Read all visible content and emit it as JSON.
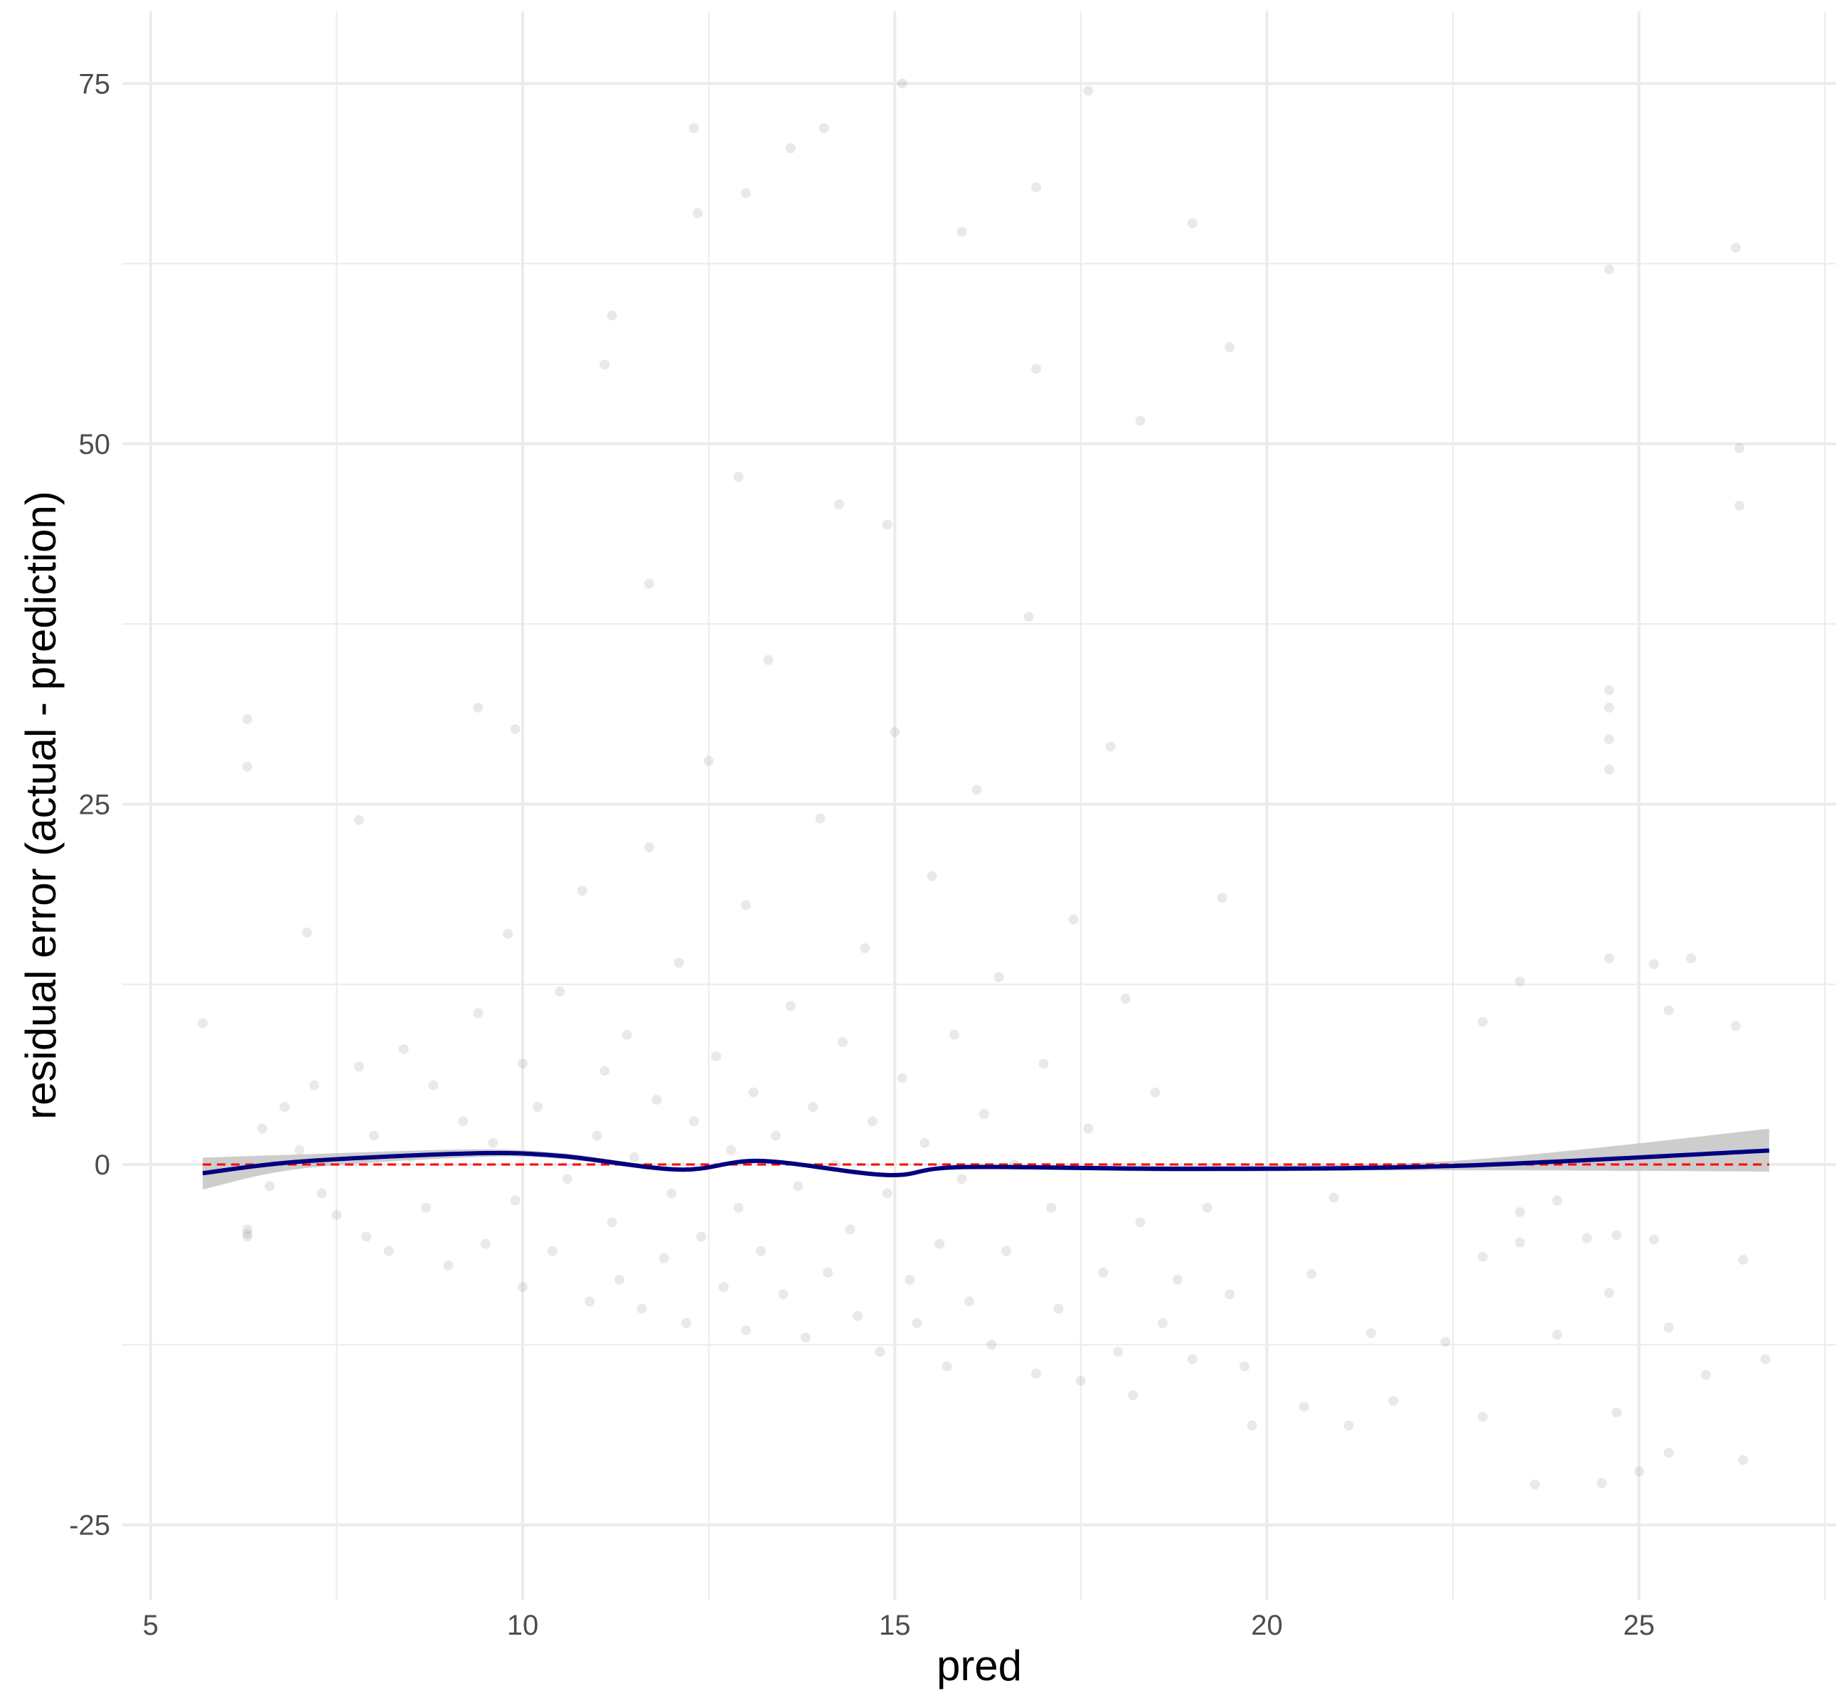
{
  "chart_data": {
    "type": "scatter",
    "title": "",
    "xlabel": "pred",
    "ylabel": "residual error (actual - prediction)",
    "xlim": [
      4.62,
      27.65
    ],
    "ylim": [
      -30.2,
      80
    ],
    "x_ticks": [
      "5",
      "10",
      "15",
      "20",
      "25"
    ],
    "y_ticks": [
      "-25",
      "0",
      "25",
      "50",
      "75"
    ],
    "grid": true,
    "legend": "none",
    "colors": {
      "points": "#999999",
      "smooth": "#000080",
      "band": "#c8c8c8",
      "reference": "#ff0000",
      "grid": "#ebebeb"
    },
    "points": [
      [
        26.3,
        63.6
      ],
      [
        24.6,
        62.1
      ],
      [
        26.35,
        49.7
      ],
      [
        26.35,
        45.7
      ],
      [
        24.6,
        32.9
      ],
      [
        24.6,
        31.7
      ],
      [
        24.6,
        29.5
      ],
      [
        24.6,
        27.4
      ],
      [
        26.3,
        9.6
      ],
      [
        22.9,
        9.9
      ],
      [
        25.4,
        10.7
      ],
      [
        25.2,
        13.9
      ],
      [
        24.6,
        14.3
      ],
      [
        23.4,
        12.7
      ],
      [
        25.7,
        14.3
      ],
      [
        12.3,
        71.9
      ],
      [
        13.6,
        70.5
      ],
      [
        14.05,
        71.9
      ],
      [
        15.1,
        75
      ],
      [
        17.6,
        74.5
      ],
      [
        19.0,
        65.3
      ],
      [
        12.35,
        66.0
      ],
      [
        13.0,
        67.4
      ],
      [
        16.9,
        67.8
      ],
      [
        15.9,
        64.7
      ],
      [
        11.2,
        58.9
      ],
      [
        11.1,
        55.5
      ],
      [
        12.9,
        47.7
      ],
      [
        19.5,
        56.7
      ],
      [
        18.3,
        51.6
      ],
      [
        16.9,
        55.2
      ],
      [
        14.25,
        45.8
      ],
      [
        14.9,
        44.4
      ],
      [
        11.7,
        40.3
      ],
      [
        9.4,
        31.7
      ],
      [
        6.3,
        30.9
      ],
      [
        6.3,
        27.6
      ],
      [
        9.9,
        30.2
      ],
      [
        7.8,
        23.9
      ],
      [
        7.1,
        16.1
      ],
      [
        5.7,
        9.8
      ],
      [
        20.9,
        -2.3
      ],
      [
        20.6,
        -7.6
      ],
      [
        21.4,
        -11.7
      ],
      [
        20.5,
        -16.8
      ],
      [
        19.8,
        -18.1
      ],
      [
        21.1,
        -18.1
      ],
      [
        21.7,
        -16.4
      ],
      [
        22.4,
        -12.3
      ],
      [
        22.9,
        -17.5
      ],
      [
        23.6,
        -22.2
      ],
      [
        24.5,
        -22.1
      ],
      [
        25.0,
        -21.3
      ],
      [
        26.4,
        -20.5
      ],
      [
        26.7,
        -13.5
      ],
      [
        25.9,
        -14.6
      ],
      [
        24.7,
        -17.2
      ],
      [
        25.4,
        -11.3
      ],
      [
        23.9,
        -11.8
      ],
      [
        24.3,
        -5.1
      ],
      [
        23.4,
        -3.3
      ],
      [
        23.4,
        -5.4
      ],
      [
        22.9,
        -6.4
      ],
      [
        23.9,
        -2.5
      ],
      [
        24.7,
        -4.9
      ],
      [
        25.2,
        -5.2
      ],
      [
        26.4,
        -6.6
      ],
      [
        25.4,
        -20.0
      ],
      [
        24.6,
        -8.9
      ],
      [
        6.3,
        -4.5
      ],
      [
        6.3,
        -5.0
      ],
      [
        6.3,
        -4.8
      ],
      [
        6.5,
        2.5
      ],
      [
        6.6,
        -1.5
      ],
      [
        6.8,
        4.0
      ],
      [
        7.0,
        1.0
      ],
      [
        7.2,
        5.5
      ],
      [
        7.3,
        -2.0
      ],
      [
        7.5,
        -3.5
      ],
      [
        7.8,
        6.8
      ],
      [
        7.9,
        -5.0
      ],
      [
        8.0,
        2.0
      ],
      [
        8.2,
        -6.0
      ],
      [
        8.4,
        8.0
      ],
      [
        8.5,
        0.5
      ],
      [
        8.7,
        -3.0
      ],
      [
        8.8,
        5.5
      ],
      [
        9.0,
        -7.0
      ],
      [
        9.2,
        3.0
      ],
      [
        9.4,
        10.5
      ],
      [
        9.5,
        -5.5
      ],
      [
        9.6,
        1.5
      ],
      [
        9.8,
        16.0
      ],
      [
        9.9,
        -2.5
      ],
      [
        10.0,
        7.0
      ],
      [
        10.0,
        -8.5
      ],
      [
        10.2,
        4.0
      ],
      [
        10.4,
        -6.0
      ],
      [
        10.5,
        12.0
      ],
      [
        10.6,
        -1.0
      ],
      [
        10.8,
        19.0
      ],
      [
        10.9,
        -9.5
      ],
      [
        11.0,
        2.0
      ],
      [
        11.1,
        6.5
      ],
      [
        11.2,
        -4.0
      ],
      [
        11.3,
        -8.0
      ],
      [
        11.4,
        9.0
      ],
      [
        11.5,
        0.5
      ],
      [
        11.6,
        -10.0
      ],
      [
        11.7,
        22.0
      ],
      [
        11.8,
        4.5
      ],
      [
        11.9,
        -6.5
      ],
      [
        12.0,
        -2.0
      ],
      [
        12.1,
        14.0
      ],
      [
        12.2,
        -11.0
      ],
      [
        12.3,
        3.0
      ],
      [
        12.4,
        -5.0
      ],
      [
        12.5,
        28.0
      ],
      [
        12.6,
        7.5
      ],
      [
        12.7,
        -8.5
      ],
      [
        12.8,
        1.0
      ],
      [
        12.9,
        -3.0
      ],
      [
        13.0,
        18.0
      ],
      [
        13.0,
        -11.5
      ],
      [
        13.1,
        5.0
      ],
      [
        13.2,
        -6.0
      ],
      [
        13.3,
        35.0
      ],
      [
        13.4,
        2.0
      ],
      [
        13.5,
        -9.0
      ],
      [
        13.6,
        11.0
      ],
      [
        13.7,
        -1.5
      ],
      [
        13.8,
        -12.0
      ],
      [
        13.9,
        4.0
      ],
      [
        14.0,
        24.0
      ],
      [
        14.1,
        -7.5
      ],
      [
        14.2,
        0.0
      ],
      [
        14.3,
        8.5
      ],
      [
        14.4,
        -4.5
      ],
      [
        14.5,
        -10.5
      ],
      [
        14.6,
        15.0
      ],
      [
        14.7,
        3.0
      ],
      [
        14.8,
        -13.0
      ],
      [
        14.9,
        -2.0
      ],
      [
        15.0,
        30.0
      ],
      [
        15.1,
        6.0
      ],
      [
        15.2,
        -8.0
      ],
      [
        15.3,
        -11.0
      ],
      [
        15.4,
        1.5
      ],
      [
        15.5,
        20.0
      ],
      [
        15.6,
        -5.5
      ],
      [
        15.7,
        -14.0
      ],
      [
        15.8,
        9.0
      ],
      [
        15.9,
        -1.0
      ],
      [
        16.0,
        -9.5
      ],
      [
        16.1,
        26.0
      ],
      [
        16.2,
        3.5
      ],
      [
        16.3,
        -12.5
      ],
      [
        16.4,
        13.0
      ],
      [
        16.5,
        -6.0
      ],
      [
        16.6,
        0.0
      ],
      [
        16.8,
        38.0
      ],
      [
        16.9,
        -14.5
      ],
      [
        17.0,
        7.0
      ],
      [
        17.1,
        -3.0
      ],
      [
        17.2,
        -10.0
      ],
      [
        17.4,
        17.0
      ],
      [
        17.5,
        -15.0
      ],
      [
        17.6,
        2.5
      ],
      [
        17.8,
        -7.5
      ],
      [
        17.9,
        29.0
      ],
      [
        18.0,
        -13.0
      ],
      [
        18.1,
        11.5
      ],
      [
        18.2,
        -16.0
      ],
      [
        18.3,
        -4.0
      ],
      [
        18.5,
        5.0
      ],
      [
        18.6,
        -11.0
      ],
      [
        18.8,
        -8.0
      ],
      [
        19.0,
        -13.5
      ],
      [
        19.2,
        -3.0
      ],
      [
        19.4,
        18.5
      ],
      [
        19.5,
        -9.0
      ],
      [
        19.7,
        -14.0
      ]
    ],
    "smooth": {
      "x": [
        5.7,
        7.0,
        9.3,
        10.5,
        12.1,
        13.2,
        14.9,
        15.9,
        18.9,
        22.5,
        26.75
      ],
      "y": [
        -0.6,
        0.2,
        0.77,
        0.6,
        -0.35,
        0.25,
        -0.73,
        -0.18,
        -0.3,
        -0.1,
        0.97
      ],
      "upper": [
        0.48,
        0.7,
        1.05,
        0.8,
        -0.2,
        0.4,
        -0.58,
        -0.05,
        -0.1,
        0.25,
        2.48
      ],
      "lower": [
        -1.73,
        -0.3,
        0.5,
        0.4,
        -0.5,
        0.1,
        -0.88,
        -0.32,
        -0.5,
        -0.4,
        -0.49
      ]
    },
    "reference_line": {
      "y": 0,
      "x_range": [
        5.7,
        26.75
      ],
      "style": "dashed"
    }
  }
}
